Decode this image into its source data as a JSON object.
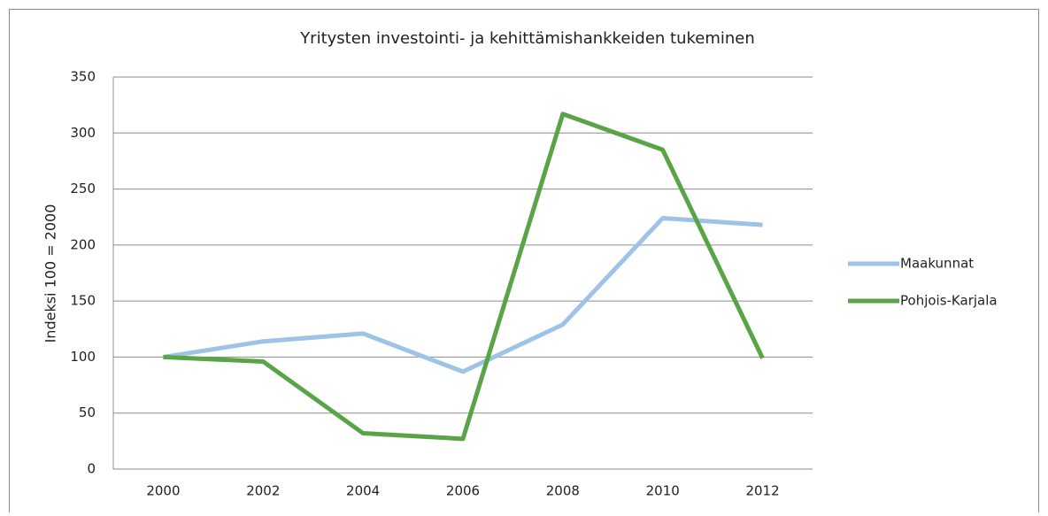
{
  "chart_data": {
    "type": "line",
    "title": "Yritysten investointi- ja kehittämishankkeiden tukeminen",
    "y_label": "Indeksi 100 = 2000",
    "categories": [
      "2000",
      "2002",
      "2004",
      "2006",
      "2008",
      "2010",
      "2012"
    ],
    "series": [
      {
        "name": "Maakunnat",
        "color": "#9dc3e6",
        "values": [
          100,
          114,
          121,
          87,
          129,
          224,
          218
        ]
      },
      {
        "name": "Pohjois-Karjala",
        "color": "#5aa448",
        "values": [
          100,
          96,
          32,
          27,
          317,
          285,
          99
        ]
      }
    ],
    "ylim": [
      0,
      350
    ],
    "yticks": [
      0,
      50,
      100,
      150,
      200,
      250,
      300,
      350
    ],
    "grid": true,
    "legend": "right"
  }
}
